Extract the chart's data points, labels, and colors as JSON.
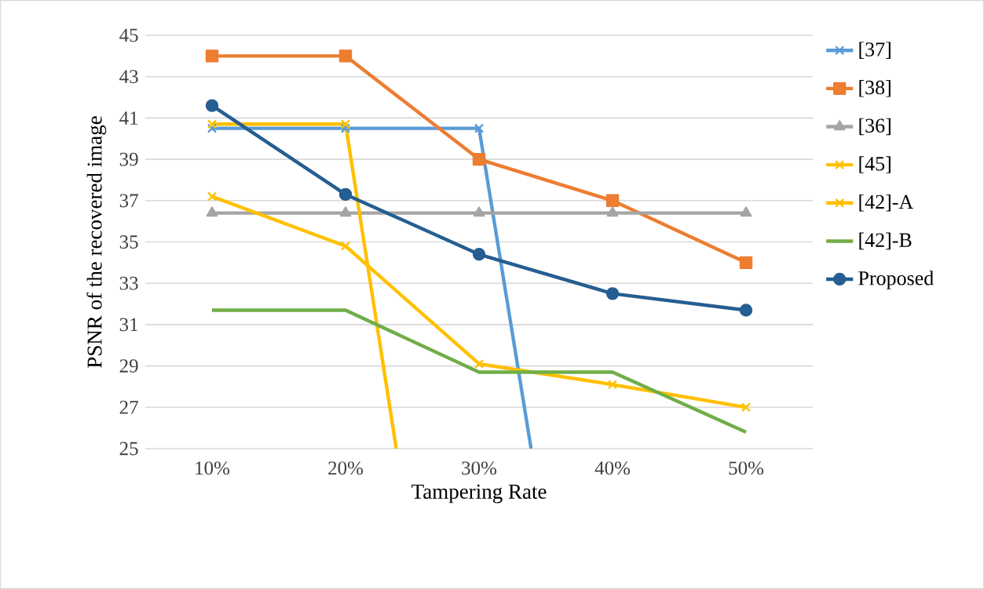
{
  "chart_data": {
    "type": "line",
    "xlabel": "Tampering Rate",
    "ylabel": "PSNR of the recovered image",
    "x": [
      10,
      20,
      30,
      40,
      50
    ],
    "series": [
      {
        "name": "[37]",
        "color": "#5b9bd5",
        "marker": "cross",
        "x": [
          10,
          20,
          30,
          33.9
        ],
        "values": [
          40.5,
          40.5,
          40.5,
          25
        ]
      },
      {
        "name": "[38]",
        "color": "#ed7d31",
        "marker": "square",
        "values": [
          44,
          44,
          39,
          37,
          34
        ]
      },
      {
        "name": "[36]",
        "color": "#a5a5a5",
        "marker": "triangle",
        "values": [
          36.4,
          36.4,
          36.4,
          36.4,
          36.4
        ]
      },
      {
        "name": "[45]",
        "color": "#ffc000",
        "marker": "cross",
        "values": [
          37.2,
          34.8,
          29.1,
          28.1,
          27.0
        ]
      },
      {
        "name": "[42]-A",
        "color": "#ffc000",
        "marker": "cross",
        "x": [
          10,
          20,
          23.8
        ],
        "values": [
          40.7,
          40.7,
          25
        ]
      },
      {
        "name": "[42]-B",
        "color": "#70ad47",
        "marker": "none",
        "values": [
          31.7,
          31.7,
          28.7,
          28.7,
          25.8
        ]
      },
      {
        "name": "Proposed",
        "color": "#255e91",
        "marker": "circle",
        "values": [
          41.6,
          37.3,
          34.4,
          32.5,
          31.7
        ]
      }
    ],
    "xlim": [
      5,
      55
    ],
    "xticks": [
      {
        "value": 10,
        "label": "10%"
      },
      {
        "value": 20,
        "label": "20%"
      },
      {
        "value": 30,
        "label": "30%"
      },
      {
        "value": 40,
        "label": "40%"
      },
      {
        "value": 50,
        "label": "50%"
      }
    ],
    "ylim": [
      25,
      45
    ],
    "yticks": [
      25,
      27,
      29,
      31,
      33,
      35,
      37,
      39,
      41,
      43,
      45
    ],
    "grid": "y",
    "legend": "right"
  }
}
